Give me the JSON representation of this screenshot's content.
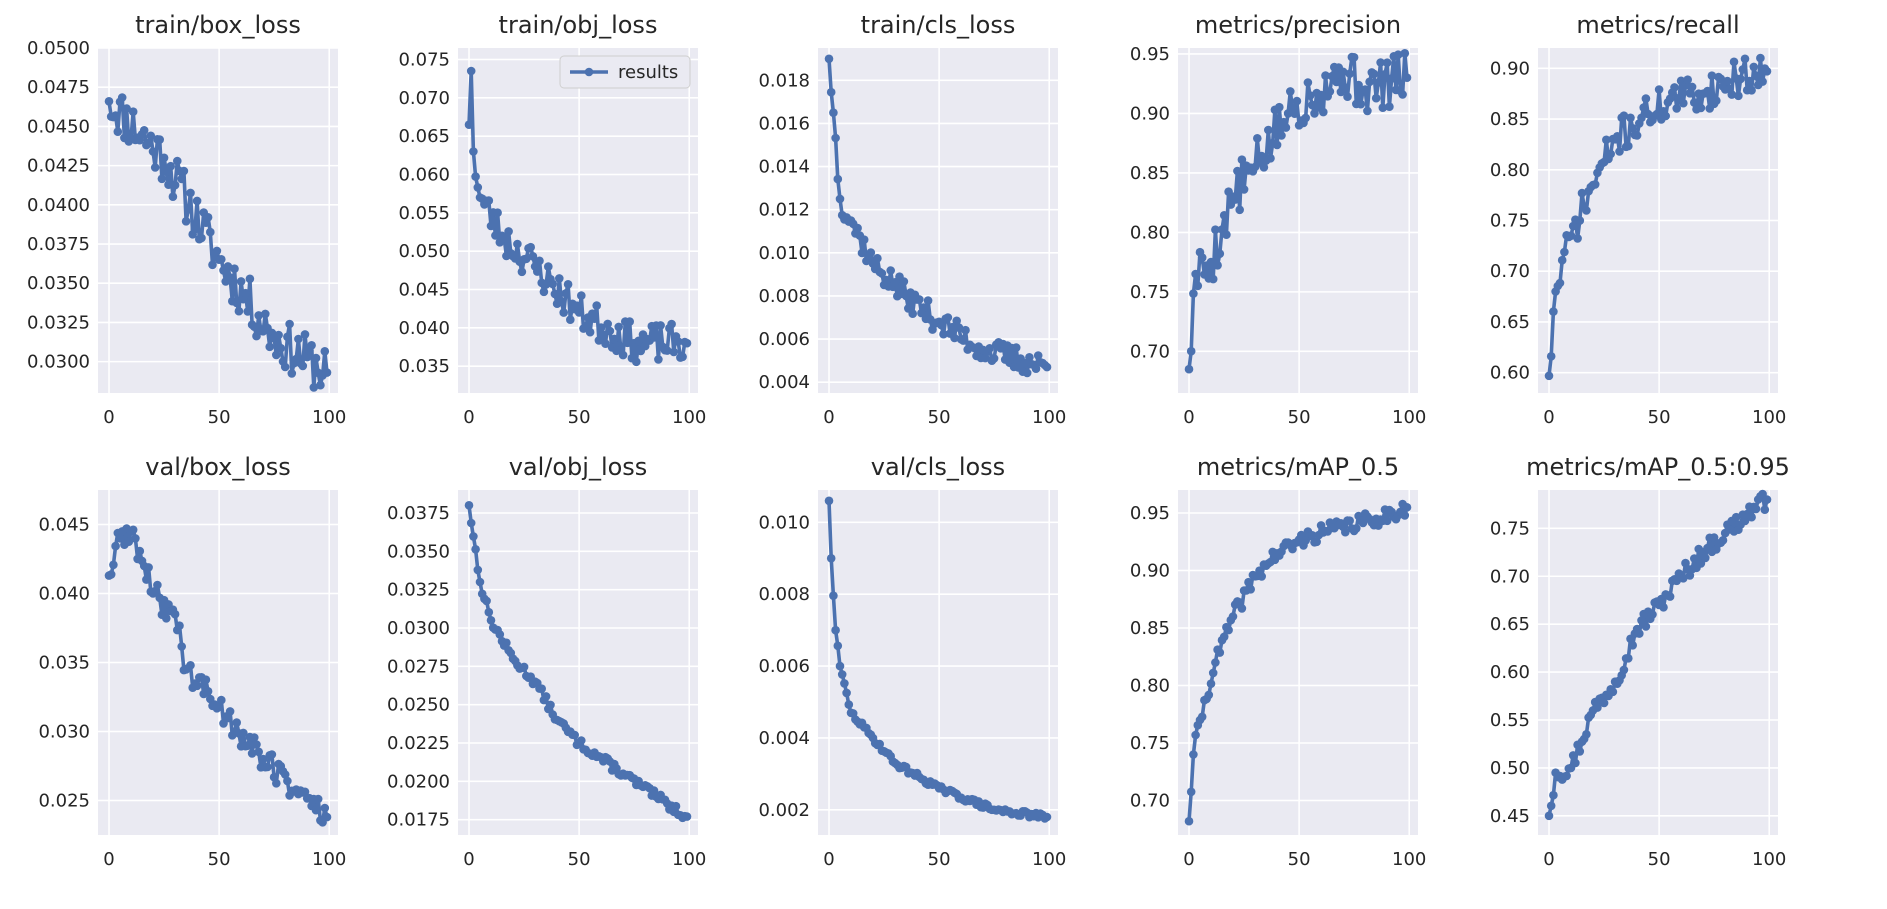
{
  "figure": {
    "legend_label": "results",
    "line_color": "#4c72b0",
    "panel_bg": "#eaeaf2",
    "grid_color": "#ffffff"
  },
  "chart_data": [
    {
      "type": "line",
      "title": "train/box_loss",
      "xlabel": "",
      "ylabel": "",
      "xlim": [
        -5,
        104
      ],
      "ylim": [
        0.028,
        0.05
      ],
      "xticks": [
        0,
        50,
        100
      ],
      "yticks": [
        0.03,
        0.0325,
        0.035,
        0.0375,
        0.04,
        0.0425,
        0.045,
        0.0475,
        0.05
      ],
      "ytick_labels": [
        "0.0300",
        "0.0325",
        "0.0350",
        "0.0375",
        "0.0400",
        "0.0425",
        "0.0450",
        "0.0475",
        "0.0500"
      ],
      "grid": true,
      "series": [
        {
          "name": "results",
          "points": [
            [
              0,
              0.0466
            ],
            [
              25,
              0.043
            ],
            [
              50,
              0.0365
            ],
            [
              75,
              0.0315
            ],
            [
              99,
              0.0293
            ]
          ],
          "noise": 0.0016,
          "seed": 11
        }
      ]
    },
    {
      "type": "line",
      "title": "train/obj_loss",
      "xlabel": "",
      "ylabel": "",
      "xlim": [
        -5,
        104
      ],
      "ylim": [
        0.0315,
        0.0765
      ],
      "xticks": [
        0,
        50,
        100
      ],
      "yticks": [
        0.035,
        0.04,
        0.045,
        0.05,
        0.055,
        0.06,
        0.065,
        0.07,
        0.075
      ],
      "ytick_labels": [
        "0.035",
        "0.040",
        "0.045",
        "0.050",
        "0.055",
        "0.060",
        "0.065",
        "0.070",
        "0.075"
      ],
      "grid": true,
      "legend": "upper right",
      "series": [
        {
          "name": "results",
          "points": [
            [
              0,
              0.0665
            ],
            [
              1,
              0.0735
            ],
            [
              2,
              0.063
            ],
            [
              5,
              0.057
            ],
            [
              15,
              0.052
            ],
            [
              30,
              0.048
            ],
            [
              50,
              0.042
            ],
            [
              75,
              0.038
            ],
            [
              99,
              0.038
            ]
          ],
          "noise": 0.0025,
          "seed": 23
        }
      ]
    },
    {
      "type": "line",
      "title": "train/cls_loss",
      "xlabel": "",
      "ylabel": "",
      "xlim": [
        -5,
        104
      ],
      "ylim": [
        0.0035,
        0.0195
      ],
      "xticks": [
        0,
        50,
        100
      ],
      "yticks": [
        0.004,
        0.006,
        0.008,
        0.01,
        0.012,
        0.014,
        0.016,
        0.018
      ],
      "ytick_labels": [
        "0.004",
        "0.006",
        "0.008",
        "0.010",
        "0.012",
        "0.014",
        "0.016",
        "0.018"
      ],
      "grid": true,
      "series": [
        {
          "name": "results",
          "points": [
            [
              0,
              0.019
            ],
            [
              2,
              0.0165
            ],
            [
              5,
              0.0125
            ],
            [
              10,
              0.0115
            ],
            [
              20,
              0.0095
            ],
            [
              35,
              0.008
            ],
            [
              50,
              0.0068
            ],
            [
              70,
              0.0055
            ],
            [
              99,
              0.0047
            ]
          ],
          "noise": 0.0006,
          "seed": 37
        }
      ]
    },
    {
      "type": "line",
      "title": "metrics/precision",
      "xlabel": "",
      "ylabel": "",
      "xlim": [
        -5,
        104
      ],
      "ylim": [
        0.665,
        0.955
      ],
      "xticks": [
        0,
        50,
        100
      ],
      "yticks": [
        0.7,
        0.75,
        0.8,
        0.85,
        0.9,
        0.95
      ],
      "ytick_labels": [
        "0.70",
        "0.75",
        "0.80",
        "0.85",
        "0.90",
        "0.95"
      ],
      "grid": true,
      "series": [
        {
          "name": "results",
          "points": [
            [
              0,
              0.685
            ],
            [
              3,
              0.765
            ],
            [
              10,
              0.775
            ],
            [
              20,
              0.83
            ],
            [
              30,
              0.855
            ],
            [
              45,
              0.9
            ],
            [
              55,
              0.915
            ],
            [
              70,
              0.935
            ],
            [
              80,
              0.92
            ],
            [
              99,
              0.93
            ]
          ],
          "noise": 0.022,
          "seed": 5
        }
      ]
    },
    {
      "type": "line",
      "title": "metrics/recall",
      "xlabel": "",
      "ylabel": "",
      "xlim": [
        -5,
        104
      ],
      "ylim": [
        0.58,
        0.92
      ],
      "xticks": [
        0,
        50,
        100
      ],
      "yticks": [
        0.6,
        0.65,
        0.7,
        0.75,
        0.8,
        0.85,
        0.9
      ],
      "ytick_labels": [
        "0.60",
        "0.65",
        "0.70",
        "0.75",
        "0.80",
        "0.85",
        "0.90"
      ],
      "grid": true,
      "series": [
        {
          "name": "results",
          "points": [
            [
              0,
              0.597
            ],
            [
              3,
              0.68
            ],
            [
              10,
              0.735
            ],
            [
              20,
              0.785
            ],
            [
              30,
              0.83
            ],
            [
              45,
              0.855
            ],
            [
              55,
              0.87
            ],
            [
              70,
              0.875
            ],
            [
              85,
              0.89
            ],
            [
              99,
              0.897
            ]
          ],
          "noise": 0.018,
          "seed": 71
        }
      ]
    },
    {
      "type": "line",
      "title": "val/box_loss",
      "xlabel": "",
      "ylabel": "",
      "xlim": [
        -5,
        104
      ],
      "ylim": [
        0.0225,
        0.0475
      ],
      "xticks": [
        0,
        50,
        100
      ],
      "yticks": [
        0.025,
        0.03,
        0.035,
        0.04,
        0.045
      ],
      "ytick_labels": [
        "0.025",
        "0.030",
        "0.035",
        "0.040",
        "0.045"
      ],
      "grid": true,
      "series": [
        {
          "name": "results",
          "points": [
            [
              0,
              0.0413
            ],
            [
              5,
              0.044
            ],
            [
              10,
              0.0445
            ],
            [
              20,
              0.04
            ],
            [
              30,
              0.0385
            ],
            [
              35,
              0.0345
            ],
            [
              50,
              0.0318
            ],
            [
              70,
              0.028
            ],
            [
              85,
              0.0258
            ],
            [
              99,
              0.0238
            ]
          ],
          "noise": 0.001,
          "seed": 89
        }
      ]
    },
    {
      "type": "line",
      "title": "val/obj_loss",
      "xlabel": "",
      "ylabel": "",
      "xlim": [
        -5,
        104
      ],
      "ylim": [
        0.0165,
        0.039
      ],
      "xticks": [
        0,
        50,
        100
      ],
      "yticks": [
        0.0175,
        0.02,
        0.0225,
        0.025,
        0.0275,
        0.03,
        0.0325,
        0.035,
        0.0375
      ],
      "ytick_labels": [
        "0.0175",
        "0.0200",
        "0.0225",
        "0.0250",
        "0.0275",
        "0.0300",
        "0.0325",
        "0.0350",
        "0.0375"
      ],
      "grid": true,
      "series": [
        {
          "name": "results",
          "points": [
            [
              0,
              0.038
            ],
            [
              5,
              0.033
            ],
            [
              10,
              0.0305
            ],
            [
              20,
              0.028
            ],
            [
              30,
              0.0265
            ],
            [
              40,
              0.024
            ],
            [
              50,
              0.0225
            ],
            [
              70,
              0.0205
            ],
            [
              85,
              0.019
            ],
            [
              99,
              0.0177
            ]
          ],
          "noise": 0.0003,
          "seed": 13
        }
      ]
    },
    {
      "type": "line",
      "title": "val/cls_loss",
      "xlabel": "",
      "ylabel": "",
      "xlim": [
        -5,
        104
      ],
      "ylim": [
        0.0013,
        0.0109
      ],
      "xticks": [
        0,
        50,
        100
      ],
      "yticks": [
        0.002,
        0.004,
        0.006,
        0.008,
        0.01
      ],
      "ytick_labels": [
        "0.002",
        "0.004",
        "0.006",
        "0.008",
        "0.010"
      ],
      "grid": true,
      "series": [
        {
          "name": "results",
          "points": [
            [
              0,
              0.0106
            ],
            [
              1,
              0.009
            ],
            [
              3,
              0.007
            ],
            [
              5,
              0.006
            ],
            [
              10,
              0.0047
            ],
            [
              20,
              0.004
            ],
            [
              30,
              0.0033
            ],
            [
              50,
              0.0026
            ],
            [
              75,
              0.002
            ],
            [
              99,
              0.0018
            ]
          ],
          "noise": 8e-05,
          "seed": 29
        }
      ]
    },
    {
      "type": "line",
      "title": "metrics/mAP_0.5",
      "xlabel": "",
      "ylabel": "",
      "xlim": [
        -5,
        104
      ],
      "ylim": [
        0.67,
        0.97
      ],
      "xticks": [
        0,
        50,
        100
      ],
      "yticks": [
        0.7,
        0.75,
        0.8,
        0.85,
        0.9,
        0.95
      ],
      "ytick_labels": [
        "0.70",
        "0.75",
        "0.80",
        "0.85",
        "0.90",
        "0.95"
      ],
      "grid": true,
      "series": [
        {
          "name": "results",
          "points": [
            [
              0,
              0.682
            ],
            [
              2,
              0.74
            ],
            [
              5,
              0.77
            ],
            [
              12,
              0.82
            ],
            [
              20,
              0.86
            ],
            [
              30,
              0.895
            ],
            [
              40,
              0.915
            ],
            [
              55,
              0.93
            ],
            [
              70,
              0.938
            ],
            [
              85,
              0.945
            ],
            [
              99,
              0.955
            ]
          ],
          "noise": 0.007,
          "seed": 41
        }
      ]
    },
    {
      "type": "line",
      "title": "metrics/mAP_0.5:0.95",
      "xlabel": "",
      "ylabel": "",
      "xlim": [
        -5,
        104
      ],
      "ylim": [
        0.43,
        0.79
      ],
      "xticks": [
        0,
        50,
        100
      ],
      "yticks": [
        0.45,
        0.5,
        0.55,
        0.6,
        0.65,
        0.7,
        0.75
      ],
      "ytick_labels": [
        "0.45",
        "0.50",
        "0.55",
        "0.60",
        "0.65",
        "0.70",
        "0.75"
      ],
      "grid": true,
      "series": [
        {
          "name": "results",
          "points": [
            [
              0,
              0.45
            ],
            [
              3,
              0.495
            ],
            [
              10,
              0.5
            ],
            [
              20,
              0.56
            ],
            [
              30,
              0.59
            ],
            [
              40,
              0.645
            ],
            [
              50,
              0.67
            ],
            [
              60,
              0.7
            ],
            [
              70,
              0.725
            ],
            [
              80,
              0.745
            ],
            [
              90,
              0.765
            ],
            [
              99,
              0.78
            ]
          ],
          "noise": 0.01,
          "seed": 97
        }
      ]
    }
  ]
}
